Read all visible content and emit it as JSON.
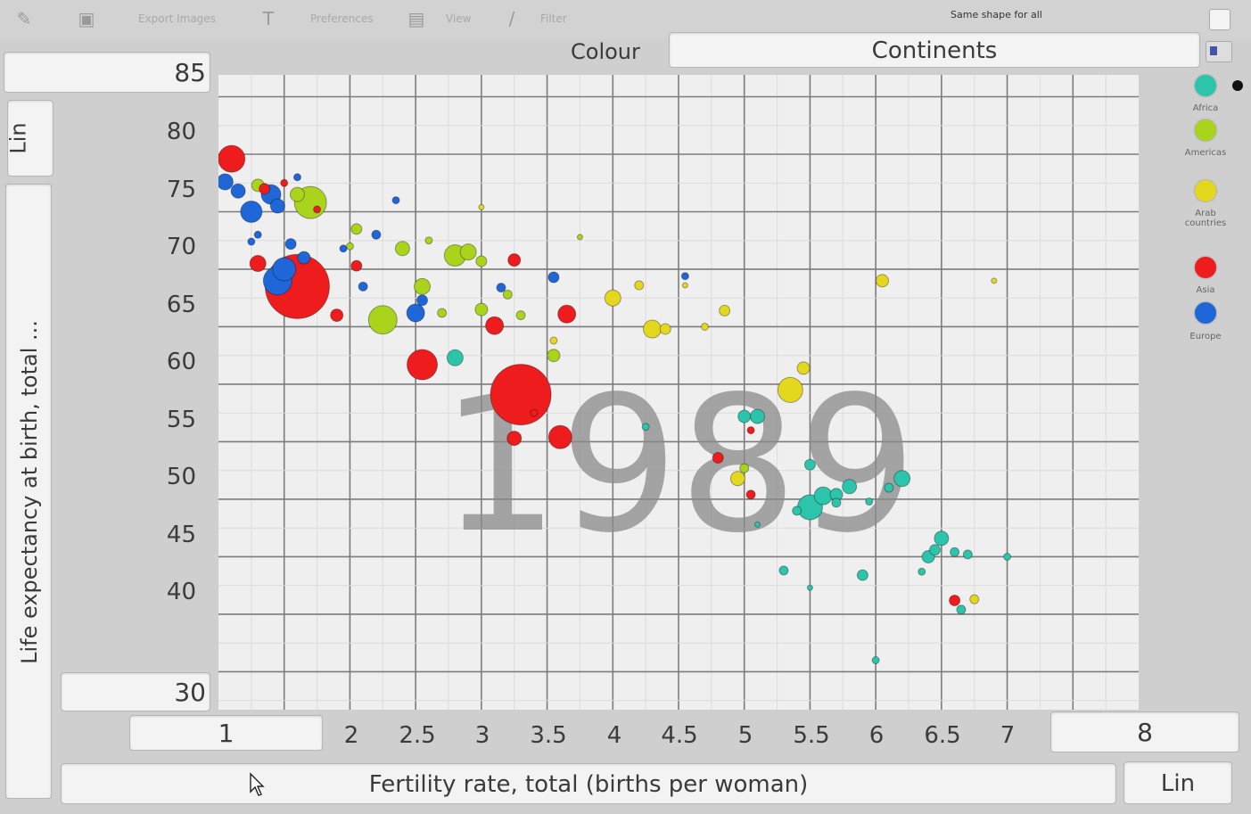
{
  "toolbar": {
    "export_label": "Export Images",
    "preferences_label": "Preferences",
    "view_label": "View",
    "filter_label": "Filter",
    "same_shape_label": "Same shape for all"
  },
  "colour": {
    "label": "Colour",
    "selected": "Continents"
  },
  "y_axis": {
    "max_value": "85",
    "min_value": "30",
    "scale_button": "Lin",
    "title": "Life expectancy at birth, total ..."
  },
  "x_axis": {
    "min_value": "1",
    "max_value": "8",
    "scale_button": "Lin",
    "title": "Fertility rate, total (births per woman)"
  },
  "year": "1989",
  "legend": [
    {
      "label": "Africa",
      "color": "#2cc4aa"
    },
    {
      "label": "Americas",
      "color": "#a9d41b"
    },
    {
      "label": "Arab countries",
      "color": "#e4d81e"
    },
    {
      "label": "Asia",
      "color": "#ee1c1c"
    },
    {
      "label": "Europe",
      "color": "#1f67d8"
    }
  ],
  "icons": {
    "pencil": "pencil-icon",
    "image": "image-icon",
    "text": "text-icon",
    "doc": "document-icon",
    "pipe": "filter-icon",
    "cursor": "mouse-cursor-icon"
  },
  "chart_data": {
    "type": "scatter",
    "title": "",
    "xlabel": "Fertility rate, total (births per woman)",
    "ylabel": "Life expectancy at birth, total ...",
    "xlim": [
      1.5,
      8.5
    ],
    "ylim": [
      31.7,
      86.9
    ],
    "x_ticks": [
      "2",
      "2.5",
      "3",
      "3.5",
      "4",
      "4.5",
      "5",
      "5.5",
      "6",
      "6.5",
      "7"
    ],
    "y_ticks": [
      "80",
      "75",
      "70",
      "65",
      "60",
      "55",
      "50",
      "45",
      "40"
    ],
    "grid": true,
    "legend_position": "right",
    "watermark": "1989",
    "series": [
      {
        "name": "Africa",
        "color": "#2cc4aa",
        "points": [
          {
            "x": 3.3,
            "y": 62.3,
            "size": 9
          },
          {
            "x": 5.5,
            "y": 57.2,
            "size": 7
          },
          {
            "x": 5.6,
            "y": 57.2,
            "size": 8
          },
          {
            "x": 6.0,
            "y": 49.3,
            "size": 14
          },
          {
            "x": 6.1,
            "y": 50.3,
            "size": 10
          },
          {
            "x": 6.3,
            "y": 51.1,
            "size": 8
          },
          {
            "x": 6.2,
            "y": 50.4,
            "size": 7
          },
          {
            "x": 6.7,
            "y": 51.8,
            "size": 9
          },
          {
            "x": 6.6,
            "y": 51.0,
            "size": 5
          },
          {
            "x": 6.0,
            "y": 53.0,
            "size": 6
          },
          {
            "x": 5.9,
            "y": 49.0,
            "size": 5
          },
          {
            "x": 5.8,
            "y": 43.8,
            "size": 5
          },
          {
            "x": 6.0,
            "y": 42.3,
            "size": 3
          },
          {
            "x": 6.4,
            "y": 43.4,
            "size": 6
          },
          {
            "x": 7.0,
            "y": 46.6,
            "size": 8
          },
          {
            "x": 6.95,
            "y": 45.6,
            "size": 6
          },
          {
            "x": 6.9,
            "y": 45.0,
            "size": 7
          },
          {
            "x": 7.1,
            "y": 45.4,
            "size": 5
          },
          {
            "x": 7.2,
            "y": 45.2,
            "size": 5
          },
          {
            "x": 7.5,
            "y": 45.0,
            "size": 4
          },
          {
            "x": 6.85,
            "y": 43.7,
            "size": 4
          },
          {
            "x": 7.15,
            "y": 40.4,
            "size": 5
          },
          {
            "x": 6.5,
            "y": 36.0,
            "size": 4
          },
          {
            "x": 4.75,
            "y": 56.3,
            "size": 4
          },
          {
            "x": 6.2,
            "y": 49.7,
            "size": 5
          },
          {
            "x": 6.45,
            "y": 49.8,
            "size": 4
          },
          {
            "x": 5.6,
            "y": 47.8,
            "size": 3
          }
        ]
      },
      {
        "name": "Americas",
        "color": "#a9d41b",
        "points": [
          {
            "x": 2.2,
            "y": 75.8,
            "size": 18
          },
          {
            "x": 2.1,
            "y": 76.5,
            "size": 8
          },
          {
            "x": 1.8,
            "y": 77.3,
            "size": 7
          },
          {
            "x": 2.75,
            "y": 65.6,
            "size": 16
          },
          {
            "x": 3.3,
            "y": 71.2,
            "size": 12
          },
          {
            "x": 3.4,
            "y": 71.5,
            "size": 9
          },
          {
            "x": 3.5,
            "y": 70.7,
            "size": 6
          },
          {
            "x": 2.9,
            "y": 71.8,
            "size": 8
          },
          {
            "x": 3.05,
            "y": 68.5,
            "size": 9
          },
          {
            "x": 2.55,
            "y": 73.5,
            "size": 6
          },
          {
            "x": 3.1,
            "y": 72.5,
            "size": 4
          },
          {
            "x": 3.5,
            "y": 66.5,
            "size": 7
          },
          {
            "x": 3.8,
            "y": 66.0,
            "size": 5
          },
          {
            "x": 3.2,
            "y": 66.2,
            "size": 5
          },
          {
            "x": 4.05,
            "y": 62.5,
            "size": 7
          },
          {
            "x": 3.7,
            "y": 67.8,
            "size": 5
          },
          {
            "x": 2.5,
            "y": 72.0,
            "size": 4
          },
          {
            "x": 5.5,
            "y": 52.7,
            "size": 5
          },
          {
            "x": 4.25,
            "y": 72.8,
            "size": 3
          }
        ]
      },
      {
        "name": "Arab countries",
        "color": "#e4d81e",
        "points": [
          {
            "x": 5.85,
            "y": 59.5,
            "size": 14
          },
          {
            "x": 5.95,
            "y": 61.4,
            "size": 7
          },
          {
            "x": 4.5,
            "y": 67.5,
            "size": 9
          },
          {
            "x": 4.7,
            "y": 68.6,
            "size": 5
          },
          {
            "x": 4.8,
            "y": 64.8,
            "size": 10
          },
          {
            "x": 4.9,
            "y": 64.8,
            "size": 6
          },
          {
            "x": 5.35,
            "y": 66.4,
            "size": 6
          },
          {
            "x": 5.2,
            "y": 65.0,
            "size": 4
          },
          {
            "x": 6.55,
            "y": 69.0,
            "size": 7
          },
          {
            "x": 7.4,
            "y": 69.0,
            "size": 3
          },
          {
            "x": 5.45,
            "y": 51.8,
            "size": 8
          },
          {
            "x": 7.25,
            "y": 41.3,
            "size": 5
          },
          {
            "x": 4.05,
            "y": 63.8,
            "size": 4
          },
          {
            "x": 3.5,
            "y": 75.4,
            "size": 3
          },
          {
            "x": 5.05,
            "y": 68.6,
            "size": 3
          }
        ]
      },
      {
        "name": "Asia",
        "color": "#ee1c1c",
        "points": [
          {
            "x": 2.1,
            "y": 68.5,
            "size": 36
          },
          {
            "x": 3.8,
            "y": 59.1,
            "size": 34
          },
          {
            "x": 1.6,
            "y": 79.6,
            "size": 15
          },
          {
            "x": 1.85,
            "y": 77.0,
            "size": 6
          },
          {
            "x": 1.8,
            "y": 70.5,
            "size": 9
          },
          {
            "x": 3.05,
            "y": 61.7,
            "size": 17
          },
          {
            "x": 3.75,
            "y": 55.3,
            "size": 8
          },
          {
            "x": 4.1,
            "y": 55.4,
            "size": 13
          },
          {
            "x": 3.6,
            "y": 65.1,
            "size": 10
          },
          {
            "x": 4.15,
            "y": 66.1,
            "size": 10
          },
          {
            "x": 3.75,
            "y": 70.8,
            "size": 7
          },
          {
            "x": 2.4,
            "y": 66.0,
            "size": 7
          },
          {
            "x": 2.55,
            "y": 70.3,
            "size": 6
          },
          {
            "x": 5.3,
            "y": 53.6,
            "size": 6
          },
          {
            "x": 5.55,
            "y": 56.0,
            "size": 4
          },
          {
            "x": 5.55,
            "y": 50.4,
            "size": 5
          },
          {
            "x": 7.1,
            "y": 41.2,
            "size": 6
          },
          {
            "x": 2.25,
            "y": 75.2,
            "size": 4
          },
          {
            "x": 3.9,
            "y": 57.5,
            "size": 4
          },
          {
            "x": 2.0,
            "y": 77.5,
            "size": 4
          }
        ]
      },
      {
        "name": "Europe",
        "color": "#1f67d8",
        "points": [
          {
            "x": 1.55,
            "y": 77.6,
            "size": 9
          },
          {
            "x": 1.65,
            "y": 76.8,
            "size": 8
          },
          {
            "x": 1.75,
            "y": 75.0,
            "size": 12
          },
          {
            "x": 1.9,
            "y": 76.5,
            "size": 11
          },
          {
            "x": 1.95,
            "y": 75.5,
            "size": 8
          },
          {
            "x": 2.0,
            "y": 70.0,
            "size": 13
          },
          {
            "x": 1.95,
            "y": 69.0,
            "size": 16
          },
          {
            "x": 2.15,
            "y": 71.0,
            "size": 7
          },
          {
            "x": 2.05,
            "y": 72.2,
            "size": 6
          },
          {
            "x": 3.0,
            "y": 66.2,
            "size": 10
          },
          {
            "x": 3.05,
            "y": 67.3,
            "size": 6
          },
          {
            "x": 2.7,
            "y": 73.0,
            "size": 5
          },
          {
            "x": 2.6,
            "y": 68.5,
            "size": 5
          },
          {
            "x": 2.45,
            "y": 71.8,
            "size": 4
          },
          {
            "x": 3.65,
            "y": 68.4,
            "size": 5
          },
          {
            "x": 4.05,
            "y": 69.3,
            "size": 6
          },
          {
            "x": 1.8,
            "y": 73.0,
            "size": 4
          },
          {
            "x": 1.75,
            "y": 72.4,
            "size": 4
          },
          {
            "x": 2.85,
            "y": 76.0,
            "size": 4
          },
          {
            "x": 5.05,
            "y": 69.4,
            "size": 4
          },
          {
            "x": 2.1,
            "y": 78.0,
            "size": 4
          }
        ]
      }
    ]
  }
}
